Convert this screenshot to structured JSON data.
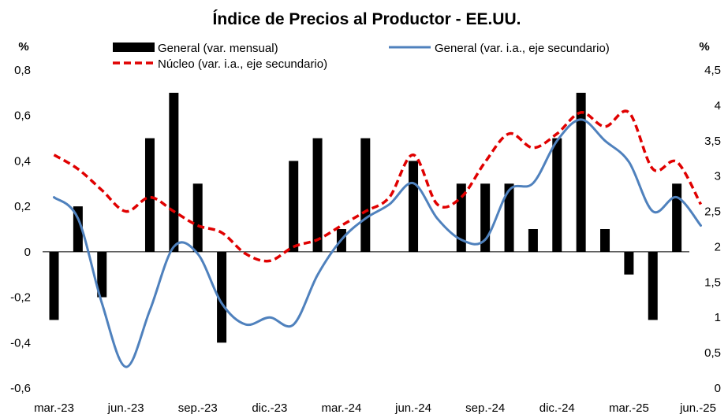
{
  "chart_data": {
    "type": "bar",
    "title": "Índice de Precios al Productor - EE.UU.",
    "y_unit_left": "%",
    "y_unit_right": "%",
    "ylim_left": [
      -0.6,
      0.8
    ],
    "yticks_left": [
      "0,8",
      "0,6",
      "0,4",
      "0,2",
      "0",
      "-0,2",
      "-0,4",
      "-0,6"
    ],
    "ylim_right": [
      0,
      4.5
    ],
    "yticks_right": [
      "4,5",
      "4",
      "3,5",
      "3",
      "2,5",
      "2",
      "1,5",
      "1",
      "0,5",
      "0"
    ],
    "x_tick_labels": [
      "mar.-23",
      "jun.-23",
      "sep.-23",
      "dic.-23",
      "mar.-24",
      "jun.-24",
      "sep.-24",
      "dic.-24",
      "mar.-25",
      "jun.-25"
    ],
    "categories": [
      "mar.-23",
      "abr.-23",
      "may.-23",
      "jun.-23",
      "jul.-23",
      "ago.-23",
      "sep.-23",
      "oct.-23",
      "nov.-23",
      "dic.-23",
      "ene.-24",
      "feb.-24",
      "mar.-24",
      "abr.-24",
      "may.-24",
      "jun.-24",
      "jul.-24",
      "ago.-24",
      "sep.-24",
      "oct.-24",
      "nov.-24",
      "dic.-24",
      "ene.-25",
      "feb.-25",
      "mar.-25",
      "abr.-25",
      "may.-25",
      "jun.-25"
    ],
    "legend_position": "top",
    "grid": false,
    "series": [
      {
        "name": "General (var. mensual)",
        "type": "bar",
        "axis": "left",
        "color": "#000000",
        "values": [
          -0.3,
          0.2,
          -0.2,
          0.0,
          0.5,
          0.7,
          0.3,
          -0.4,
          0.0,
          0.0,
          0.4,
          0.5,
          0.1,
          0.5,
          0.0,
          0.4,
          0.0,
          0.3,
          0.3,
          0.3,
          0.1,
          0.5,
          0.7,
          0.1,
          -0.1,
          -0.3,
          0.3,
          0.0
        ]
      },
      {
        "name": "General (var. i.a., eje secundario)",
        "type": "line",
        "axis": "right",
        "color": "#4F81BD",
        "values": [
          2.7,
          2.4,
          1.2,
          0.3,
          1.1,
          2.0,
          1.9,
          1.2,
          0.9,
          1.0,
          0.9,
          1.6,
          2.1,
          2.4,
          2.6,
          2.9,
          2.4,
          2.1,
          2.1,
          2.8,
          2.9,
          3.5,
          3.8,
          3.5,
          3.2,
          2.5,
          2.7,
          2.3
        ]
      },
      {
        "name": "Núcleo (var. i.a., eje secundario)",
        "type": "line",
        "axis": "right",
        "color": "#E00000",
        "dash": true,
        "values": [
          3.3,
          3.1,
          2.8,
          2.5,
          2.7,
          2.5,
          2.3,
          2.2,
          1.9,
          1.8,
          2.0,
          2.1,
          2.3,
          2.5,
          2.7,
          3.3,
          2.6,
          2.7,
          3.2,
          3.6,
          3.4,
          3.6,
          3.9,
          3.7,
          3.9,
          3.1,
          3.2,
          2.6
        ]
      }
    ]
  }
}
